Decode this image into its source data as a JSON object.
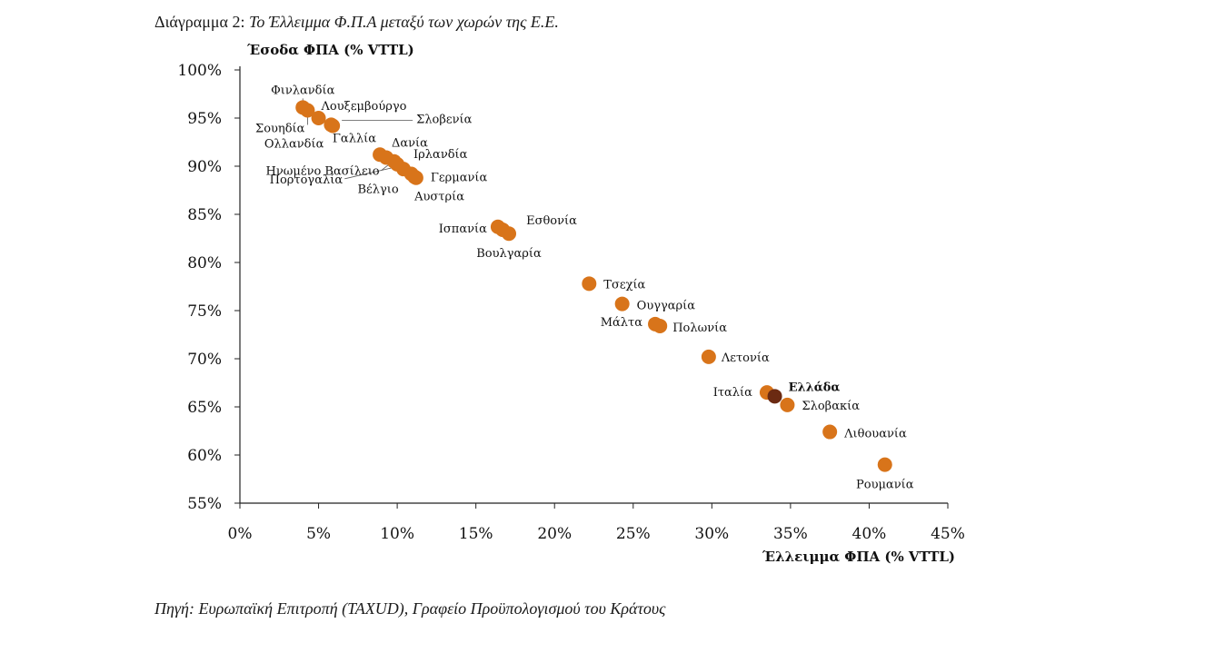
{
  "caption": {
    "prefix": "Διάγραμμα 2: ",
    "title": "Το Έλλειμμα Φ.Π.Α μεταξύ των χωρών της Ε.Ε."
  },
  "source": "Πηγή: Ευρωπαϊκή Επιτροπή (TAXUD), Γραφείο Προϋπολογισμού του Κράτους",
  "colors": {
    "point": "#D8741A",
    "highlight": "#6B2A12",
    "axis": "#222222",
    "leader": "#555555"
  },
  "chart_data": {
    "type": "scatter",
    "title": "Το Έλλειμμα Φ.Π.Α μεταξύ των χωρών της Ε.Ε.",
    "xlabel": "Έλλειμμα ΦΠΑ (% VTTL)",
    "ylabel": "Έσοδα ΦΠΑ (% VTTL)",
    "xlim": [
      0,
      45
    ],
    "ylim": [
      55,
      100
    ],
    "xticks": [
      "0%",
      "5%",
      "10%",
      "15%",
      "20%",
      "25%",
      "30%",
      "35%",
      "40%",
      "45%"
    ],
    "yticks": [
      "55%",
      "60%",
      "65%",
      "70%",
      "75%",
      "80%",
      "85%",
      "90%",
      "95%",
      "100%"
    ],
    "points": [
      {
        "label": "Φινλανδία",
        "x": 4.0,
        "y": 96.1
      },
      {
        "label": "Σουηδία",
        "x": 4.3,
        "y": 95.8
      },
      {
        "label": "Λουξεμβούργο",
        "x": 5.0,
        "y": 95.0
      },
      {
        "label": "Ολλανδία",
        "x": 5.8,
        "y": 94.3
      },
      {
        "label": "Σλοβενία",
        "x": 5.9,
        "y": 94.2
      },
      {
        "label": "Γαλλία",
        "x": 8.9,
        "y": 91.2
      },
      {
        "label": "Δανία",
        "x": 9.3,
        "y": 90.9
      },
      {
        "label": "Ηνωμένο Βασίλειο",
        "x": 9.8,
        "y": 90.5
      },
      {
        "label": "Πορτογαλία",
        "x": 10.0,
        "y": 90.2
      },
      {
        "label": "Ιρλανδία",
        "x": 10.4,
        "y": 89.7
      },
      {
        "label": "Βέλγιο",
        "x": 10.9,
        "y": 89.2
      },
      {
        "label": "Γερμανία",
        "x": 11.2,
        "y": 88.8
      },
      {
        "label": "Αυστρία",
        "x": 11.1,
        "y": 88.9
      },
      {
        "label": "Ισπανία",
        "x": 16.4,
        "y": 83.7
      },
      {
        "label": "Εσθονία",
        "x": 16.7,
        "y": 83.4
      },
      {
        "label": "Βουλγαρία",
        "x": 17.1,
        "y": 83.0
      },
      {
        "label": "Τσεχία",
        "x": 22.2,
        "y": 77.8
      },
      {
        "label": "Ουγγαρία",
        "x": 24.3,
        "y": 75.7
      },
      {
        "label": "Μάλτα",
        "x": 26.4,
        "y": 73.6
      },
      {
        "label": "Πολωνία",
        "x": 26.7,
        "y": 73.4
      },
      {
        "label": "Λετονία",
        "x": 29.8,
        "y": 70.2
      },
      {
        "label": "Ιταλία",
        "x": 33.5,
        "y": 66.5
      },
      {
        "label": "Ελλάδα",
        "x": 34.0,
        "y": 66.1,
        "highlight": true
      },
      {
        "label": "Σλοβακία",
        "x": 34.8,
        "y": 65.2
      },
      {
        "label": "Λιθουανία",
        "x": 37.5,
        "y": 62.4
      },
      {
        "label": "Ρουμανία",
        "x": 41.0,
        "y": 59.0
      }
    ]
  }
}
